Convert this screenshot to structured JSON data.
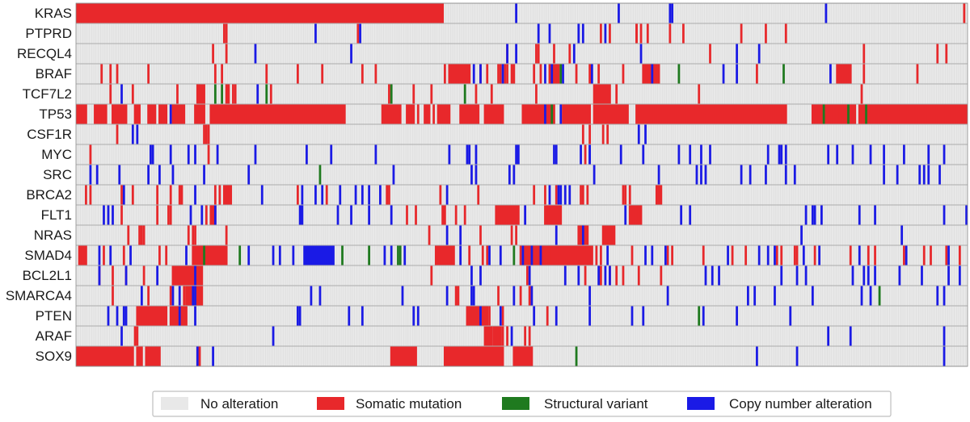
{
  "chart_data": {
    "type": "heatmap",
    "subtype": "oncoprint",
    "n_samples": 400,
    "genes": [
      "KRAS",
      "PTPRD",
      "RECQL4",
      "BRAF",
      "TCF7L2",
      "TP53",
      "CSF1R",
      "MYC",
      "SRC",
      "BRCA2",
      "FLT1",
      "NRAS",
      "SMAD4",
      "BCL2L1",
      "SMARCA4",
      "PTEN",
      "ARAF",
      "SOX9"
    ],
    "legend": [
      {
        "key": "none",
        "label": "No alteration",
        "color": "#e8e8e8"
      },
      {
        "key": "mut",
        "label": "Somatic mutation",
        "color": "#e8282b"
      },
      {
        "key": "sv",
        "label": "Structural variant",
        "color": "#1f7a1f"
      },
      {
        "key": "cna",
        "label": "Copy number alteration",
        "color": "#1a1ae6"
      }
    ],
    "colors": {
      "none": "#e8e8e8",
      "mut": "#e8282b",
      "sv": "#1f7a1f",
      "cna": "#1a1ae6",
      "cell_line": "#d4d4d4",
      "row_divider": "#9a9a9a"
    },
    "alterations": {
      "KRAS": {
        "mut": [
          [
            0,
            165
          ],
          398
        ],
        "sv": [],
        "cna": [
          197,
          243,
          266,
          267,
          336
        ]
      },
      "PTPRD": {
        "mut": [
          66,
          67,
          126,
          235,
          239,
          251,
          251,
          253,
          256,
          266,
          272,
          298,
          318,
          309
        ],
        "sv": [],
        "cna": [
          107,
          127,
          207,
          212,
          225,
          227,
          237
        ]
      },
      "RECQL4": {
        "mut": [
          61,
          67,
          193,
          206,
          207,
          214,
          221,
          284,
          353,
          386,
          390
        ],
        "sv": [],
        "cna": [
          80,
          123,
          193,
          197,
          223,
          253,
          296,
          306
        ]
      },
      "BRAF": {
        "mut": [
          11,
          15,
          18,
          32,
          62,
          65,
          85,
          99,
          110,
          128,
          134,
          165,
          [
            167,
            177
          ],
          176,
          181,
          184,
          189,
          190,
          192,
          193,
          195,
          196,
          205,
          208,
          [
            212,
            217
          ],
          224,
          230,
          234,
          245,
          [
            254,
            262
          ],
          305,
          [
            341,
            348
          ],
          353,
          377
        ],
        "sv": [
          217,
          270,
          317
        ],
        "cna": [
          178,
          181,
          191,
          210,
          213,
          218,
          231,
          258,
          290,
          296,
          338
        ]
      },
      "TCF7L2": {
        "mut": [
          15,
          25,
          45,
          [
            54,
            58
          ],
          [
            67,
            69
          ],
          70,
          71,
          87,
          140,
          151,
          159,
          179,
          186,
          206,
          [
            232,
            240
          ],
          242,
          279,
          352
        ],
        "sv": [
          62,
          65,
          85,
          141,
          174
        ],
        "cna": [
          20,
          81
        ]
      },
      "TP53": {
        "mut": [
          [
            0,
            5
          ],
          [
            8,
            14
          ],
          [
            16,
            23
          ],
          16,
          [
            26,
            29
          ],
          [
            32,
            36
          ],
          [
            37,
            41
          ],
          [
            43,
            49
          ],
          [
            53,
            58
          ],
          [
            60,
            121
          ],
          [
            137,
            146
          ],
          [
            148,
            152
          ],
          153,
          [
            156,
            159
          ],
          160,
          [
            162,
            168
          ],
          [
            172,
            181
          ],
          [
            183,
            192
          ],
          [
            200,
            215
          ],
          [
            218,
            231
          ],
          [
            232,
            248
          ],
          [
            251,
            319
          ],
          [
            334,
            350
          ],
          [
            330,
            342
          ],
          [
            351,
            400
          ]
        ],
        "sv": [
          213,
          335,
          346,
          354
        ],
        "cna": [
          42,
          210,
          217
        ]
      },
      "CSF1R": {
        "mut": [
          18,
          57,
          58,
          59,
          227,
          230,
          236,
          238
        ],
        "sv": [],
        "cna": [
          25,
          27,
          252,
          255
        ]
      },
      "MYC": {
        "mut": [
          6,
          59,
          228
        ],
        "sv": [],
        "cna": [
          33,
          34,
          42,
          50,
          53,
          63,
          80,
          103,
          114,
          134,
          167,
          175,
          176,
          179,
          197,
          198,
          214,
          215,
          226,
          230,
          230,
          244,
          254,
          270,
          275,
          280,
          284,
          310,
          315,
          316,
          318,
          337,
          341,
          348,
          356,
          362,
          371,
          382,
          389
        ]
      },
      "SRC": {
        "mut": [],
        "sv": [
          109
        ],
        "cna": [
          6,
          9,
          19,
          32,
          37,
          43,
          57,
          77,
          142,
          177,
          179,
          194,
          196,
          232,
          261,
          278,
          280,
          282,
          298,
          302,
          309,
          318,
          322,
          362,
          368,
          378,
          380,
          382,
          387
        ]
      },
      "BRCA2": {
        "mut": [
          4,
          6,
          20,
          25,
          36,
          42,
          [
            46,
            48
          ],
          62,
          64,
          [
            66,
            70
          ],
          99,
          112,
          139,
          140,
          163,
          180,
          205,
          210,
          215,
          227,
          226,
          229,
          245,
          246,
          248,
          [
            260,
            263
          ]
        ],
        "sv": [],
        "cna": [
          21,
          53,
          83,
          101,
          107,
          110,
          118,
          125,
          128,
          131,
          136,
          166,
          212,
          216,
          217,
          219,
          221
        ]
      },
      "FLT1": {
        "mut": [
          20,
          36,
          41,
          42,
          58,
          [
            60,
            63
          ],
          148,
          152,
          [
            164,
            166
          ],
          170,
          174,
          [
            188,
            199
          ],
          [
            210,
            218
          ],
          [
            248,
            254
          ],
          252
        ],
        "sv": [],
        "cna": [
          12,
          14,
          16,
          51,
          56,
          62,
          [
            100,
            102
          ],
          117,
          123,
          131,
          141,
          201,
          246,
          271,
          275,
          327,
          330,
          331,
          334,
          351,
          358,
          389,
          399
        ]
      },
      "NRAS": {
        "mut": [
          23,
          28,
          29,
          30,
          50,
          52,
          53,
          67,
          158,
          181,
          195,
          197,
          [
            225,
            230
          ],
          [
            236,
            242
          ]
        ],
        "sv": [],
        "cna": [
          166,
          172,
          215,
          227,
          325,
          370
        ]
      },
      "SMAD4": {
        "mut": [
          [
            1,
            5
          ],
          12,
          21,
          37,
          40,
          [
            52,
            68
          ],
          [
            161,
            170
          ],
          176,
          182,
          184,
          [
            199,
            219
          ],
          [
            213,
            232
          ],
          231,
          233,
          235,
          249,
          265,
          267,
          281,
          294,
          300,
          314,
          316,
          322,
          323,
          331,
          347,
          355,
          358,
          371,
          380,
          383,
          390,
          396
        ],
        "sv": [
          57,
          73,
          119,
          131,
          144,
          145,
          196
        ],
        "cna": [
          10,
          15,
          24,
          49,
          77,
          88,
          91,
          97,
          [
            102,
            116
          ],
          138,
          141,
          147,
          172,
          185,
          190,
          200,
          204,
          208,
          238,
          255,
          258,
          264,
          292,
          306,
          310,
          313,
          326,
          333,
          351,
          372,
          391
        ]
      },
      "BCL2L1": {
        "mut": [
          10,
          16,
          22,
          30,
          [
            43,
            57
          ],
          159,
          202,
          228,
          235,
          239,
          242,
          245,
          252,
          262
        ],
        "sv": [],
        "cna": [
          10,
          22,
          36,
          53,
          177,
          181,
          203,
          219,
          225,
          234,
          237,
          239,
          282,
          285,
          288,
          316,
          323,
          327,
          348,
          353,
          355,
          358,
          369,
          379,
          391,
          396
        ]
      },
      "SMARCA4": {
        "mut": [
          16,
          32,
          42,
          48,
          [
            49,
            57
          ],
          170,
          171,
          189,
          199,
          203
        ],
        "sv": [
          360
        ],
        "cna": [
          29,
          43,
          46,
          52,
          53,
          105,
          109,
          146,
          166,
          177,
          178,
          196,
          204,
          230,
          265,
          301,
          304,
          313,
          330,
          352,
          356,
          386,
          389
        ]
      },
      "PTEN": {
        "mut": [
          [
            27,
            41
          ],
          [
            42,
            47
          ],
          [
            45,
            50
          ],
          [
            175,
            182
          ],
          [
            182,
            185
          ],
          185,
          191,
          211
        ],
        "sv": [
          279
        ],
        "cna": [
          14,
          18,
          21,
          22,
          46,
          53,
          99,
          100,
          122,
          128,
          151,
          153,
          181,
          190,
          205,
          215,
          230,
          249,
          254,
          281,
          296,
          320
        ]
      },
      "ARAF": {
        "mut": [
          26,
          27,
          [
            183,
            187
          ],
          [
            187,
            191
          ],
          190,
          191,
          193,
          201,
          203
        ],
        "sv": [],
        "cna": [
          20,
          88,
          195,
          337,
          347,
          389
        ]
      },
      "SOX9": {
        "mut": [
          [
            0,
            26
          ],
          [
            27,
            30
          ],
          [
            31,
            38
          ],
          [
            54,
            56
          ],
          [
            141,
            153
          ],
          [
            165,
            192
          ],
          [
            196,
            205
          ]
        ],
        "sv": [
          224
        ],
        "cna": [
          54,
          61,
          305,
          323,
          389
        ]
      }
    }
  }
}
